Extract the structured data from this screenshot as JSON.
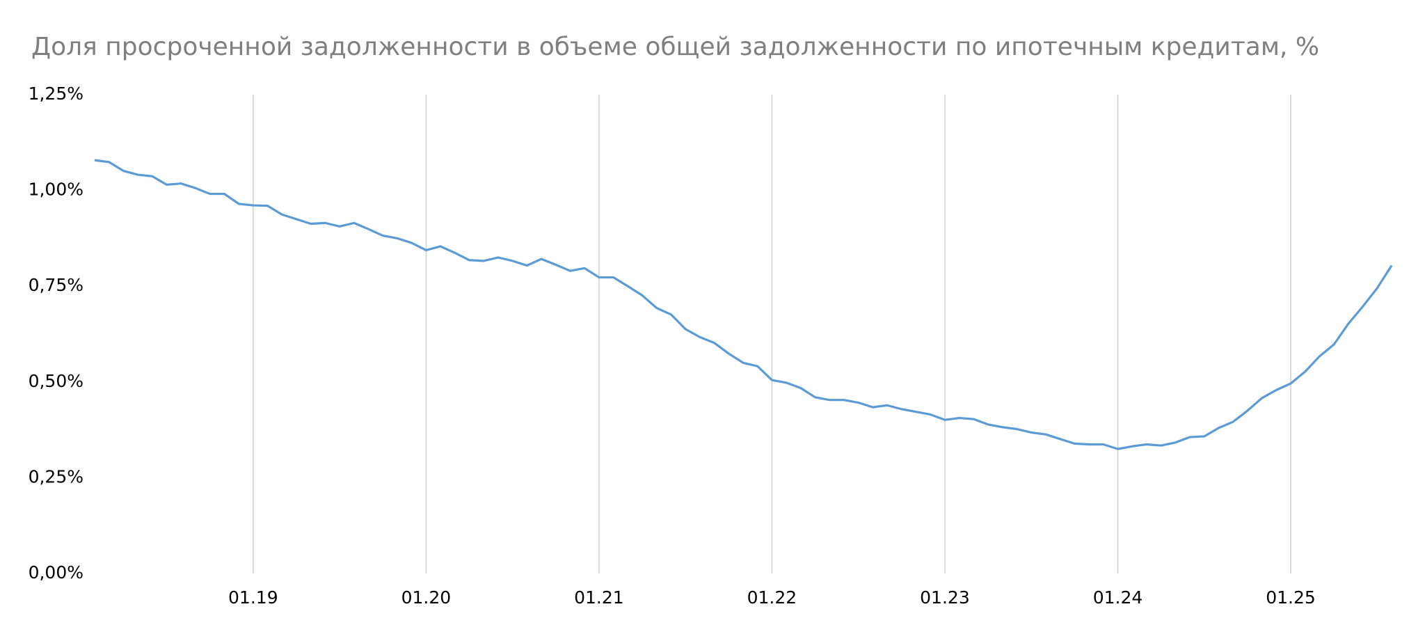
{
  "chart_data": {
    "type": "line",
    "title": "Доля просроченной задолженности в объеме общей задолженности по ипотечным кредитам, %",
    "categories": [
      null,
      null,
      null,
      null,
      null,
      null,
      null,
      null,
      null,
      null,
      null,
      "01.19",
      null,
      null,
      null,
      null,
      null,
      null,
      null,
      null,
      null,
      null,
      null,
      "01.20",
      null,
      null,
      null,
      null,
      null,
      null,
      null,
      null,
      null,
      null,
      null,
      "01.21",
      null,
      null,
      null,
      null,
      null,
      null,
      null,
      null,
      null,
      null,
      null,
      "01.22",
      null,
      null,
      null,
      null,
      null,
      null,
      null,
      null,
      null,
      null,
      null,
      "01.23",
      null,
      null,
      null,
      null,
      null,
      null,
      null,
      null,
      null,
      null,
      null,
      "01.24",
      null,
      null,
      null,
      null,
      null,
      null,
      null,
      null,
      null,
      null,
      null,
      "01.25",
      null,
      null,
      null,
      null,
      null,
      null,
      null
    ],
    "series": [
      {
        "color": "#5b9bd5",
        "values": [
          1.079,
          1.074,
          1.051,
          1.041,
          1.037,
          1.015,
          1.018,
          1.006,
          0.991,
          0.991,
          0.965,
          0.961,
          0.96,
          0.937,
          0.925,
          0.913,
          0.915,
          0.906,
          0.915,
          0.899,
          0.882,
          0.875,
          0.863,
          0.844,
          0.854,
          0.837,
          0.818,
          0.816,
          0.825,
          0.816,
          0.804,
          0.821,
          0.806,
          0.79,
          0.797,
          0.773,
          0.773,
          0.75,
          0.726,
          0.693,
          0.676,
          0.638,
          0.617,
          0.602,
          0.574,
          0.55,
          0.541,
          0.505,
          0.498,
          0.484,
          0.46,
          0.453,
          0.453,
          0.446,
          0.434,
          0.439,
          0.429,
          0.422,
          0.415,
          0.401,
          0.406,
          0.403,
          0.389,
          0.382,
          0.377,
          0.368,
          0.363,
          0.351,
          0.339,
          0.337,
          0.337,
          0.325,
          0.332,
          0.337,
          0.334,
          0.342,
          0.356,
          0.358,
          0.38,
          0.396,
          0.425,
          0.458,
          0.479,
          0.496,
          0.527,
          0.567,
          0.598,
          0.652,
          0.697,
          0.745,
          0.804
        ]
      }
    ],
    "ylim": [
      0,
      1.25
    ],
    "yticks": [
      {
        "value": 0,
        "label": "0,00%"
      },
      {
        "value": 0.25,
        "label": "0,25%"
      },
      {
        "value": 0.5,
        "label": "0,50%"
      },
      {
        "value": 0.75,
        "label": "0,75%"
      },
      {
        "value": 1,
        "label": "1,00%"
      },
      {
        "value": 1.25,
        "label": "1,25%"
      }
    ],
    "grid": "x"
  }
}
